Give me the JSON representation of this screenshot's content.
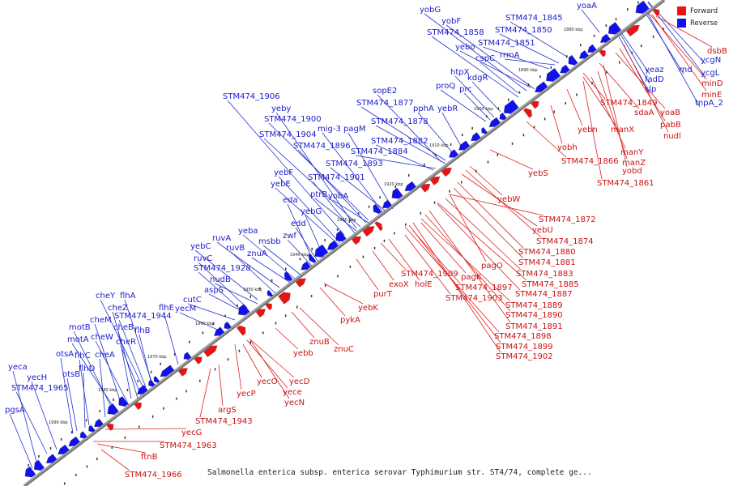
{
  "legend": [
    {
      "label": "Forward",
      "color": "#ee1111"
    },
    {
      "label": "Reverse",
      "color": "#1111ee"
    }
  ],
  "caption": "Salmonella enterica subsp. enterica serovar Typhimurium str. ST4/74, complete ge...",
  "colors": {
    "forward": "#ee1111",
    "reverse": "#1111ee",
    "forward_line": "#dd2222",
    "reverse_line": "#2233cc",
    "axis": "#777777"
  },
  "kbp_ticks": [
    "1880 kbp",
    "1890 kbp",
    "1900 kbp",
    "1910 kbp",
    "1920 kbp",
    "1930 kbp",
    "1940 kbp",
    "1950 kbp",
    "1960 kbp",
    "1970 kbp",
    "1980 kbp",
    "1990 kbp"
  ],
  "reverse_labels": [
    "yobG",
    "yobF",
    "STM474_1858",
    "yebo",
    "cspC",
    "htpX",
    "kdgR",
    "proQ",
    "prc",
    "STM474_1845",
    "STM474_1850",
    "STM474_1851",
    "rrmA",
    "yoaA",
    "sopE2",
    "STM474_1877",
    "pphA",
    "yebR",
    "STM474_1878",
    "STM474_1882",
    "STM474_1884",
    "STM474_1906",
    "yeby",
    "STM474_1900",
    "mig-3",
    "pagM",
    "STM474_1904",
    "STM474_1896",
    "STM474_1893",
    "yebF",
    "yebE",
    "STM474_1901",
    "ptrB",
    "yobA",
    "eda",
    "yebG",
    "edd",
    "zwf",
    "yeba",
    "ruvA",
    "msbb",
    "yebC",
    "ruvB",
    "ruvC",
    "znuA",
    "STM474_1928",
    "nudB",
    "aspS",
    "cutC",
    "yecM",
    "cheY",
    "flhA",
    "cheZ",
    "cheM",
    "flhE",
    "STM474_1944",
    "motB",
    "cheB",
    "flhB",
    "motA",
    "cheW",
    "cheR",
    "otsA",
    "flhC",
    "cheA",
    "flhD",
    "otsB",
    "yeca",
    "yecH",
    "STM474_1965",
    "pgsA",
    "yeaz",
    "fadD",
    "slp",
    "rnd",
    "ycgN",
    "ycgL",
    "tnpA_2"
  ],
  "forward_labels": [
    "dsbB",
    "minD",
    "minE",
    "STM474_1849",
    "sdaA",
    "yoaB",
    "pabB",
    "nudl",
    "yebn",
    "manX",
    "yobh",
    "manY",
    "manZ",
    "yobd",
    "STM474_1866",
    "STM474_1861",
    "yebS",
    "yebW",
    "STM474_1872",
    "yebU",
    "STM474_1874",
    "STM474_1880",
    "STM474_1881",
    "pagO",
    "STM474_1883",
    "STM474_1885",
    "STM474_1887",
    "STM474_1909",
    "pagK",
    "STM474_1897",
    "STM474_1903",
    "exoX",
    "holE",
    "purT",
    "STM474_1889",
    "STM474_1890",
    "STM474_1891",
    "STM474_1898",
    "STM474_1899",
    "STM474_1902",
    "yebK",
    "pykA",
    "znuB",
    "znuC",
    "yebb",
    "yecD",
    "yecO",
    "yece",
    "yecN",
    "yecP",
    "argS",
    "STM474_1943",
    "yecG",
    "STM474_1963",
    "ftnB",
    "STM474_1966"
  ]
}
